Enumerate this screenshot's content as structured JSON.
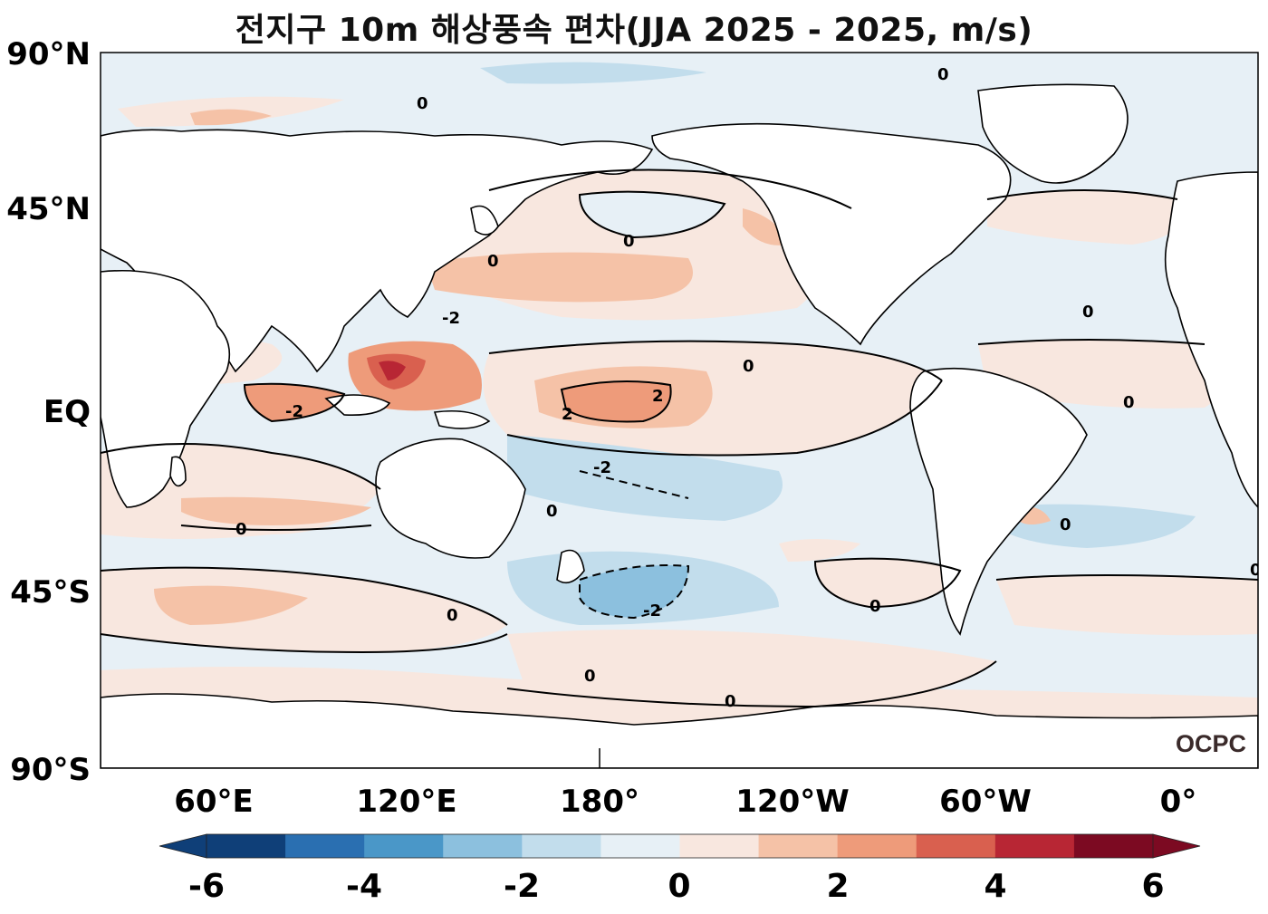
{
  "title": "전지구 10m 해상풍속 편차(JJA 2025 - 2025, m/s)",
  "logo_text": "OCPC",
  "lat_labels": [
    "90°N",
    "45°N",
    "EQ",
    "45°S",
    "90°S"
  ],
  "lon_labels": [
    "60°E",
    "120°E",
    "180°",
    "120°W",
    "60°W",
    "0°"
  ],
  "colorbar": {
    "ticks": [
      "-6",
      "-4",
      "-2",
      "0",
      "2",
      "4",
      "6"
    ],
    "colors": [
      "#0f3f78",
      "#2a6fb1",
      "#4a97c8",
      "#8cc0de",
      "#c2ddec",
      "#e7f0f6",
      "#f8e7df",
      "#f5c2a7",
      "#ee9b7a",
      "#d9604f",
      "#b82634",
      "#7c0a22"
    ],
    "extend": "both"
  },
  "contour_labels": [
    "0",
    "2",
    "-2"
  ],
  "colors": {
    "land": "#ffffff",
    "coastline": "#000000",
    "contour": "#000000",
    "title": "#111111"
  }
}
